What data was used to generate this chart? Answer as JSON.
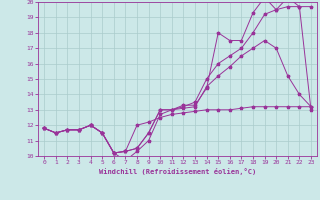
{
  "xlabel": "Windchill (Refroidissement éolien,°C)",
  "xlim": [
    -0.5,
    23.5
  ],
  "ylim": [
    10,
    20
  ],
  "yticks": [
    10,
    11,
    12,
    13,
    14,
    15,
    16,
    17,
    18,
    19,
    20
  ],
  "xticks": [
    0,
    1,
    2,
    3,
    4,
    5,
    6,
    7,
    8,
    9,
    10,
    11,
    12,
    13,
    14,
    15,
    16,
    17,
    18,
    19,
    20,
    21,
    22,
    23
  ],
  "bg_color": "#cce8e8",
  "line_color": "#993399",
  "grid_color": "#aacccc",
  "line1_x": [
    0,
    1,
    2,
    3,
    4,
    5,
    6,
    7,
    8,
    9,
    10,
    11,
    12,
    13,
    14,
    15,
    16,
    17,
    18,
    19,
    20,
    21,
    22,
    23
  ],
  "line1_y": [
    11.8,
    11.5,
    11.7,
    11.7,
    12.0,
    11.5,
    10.2,
    9.7,
    10.3,
    11.0,
    12.7,
    13.0,
    13.3,
    13.3,
    14.4,
    18.0,
    17.5,
    17.5,
    19.3,
    20.3,
    19.5,
    19.7,
    19.7,
    13.0
  ],
  "line2_x": [
    0,
    1,
    2,
    3,
    4,
    5,
    6,
    7,
    8,
    9,
    10,
    11,
    12,
    13,
    14,
    15,
    16,
    17,
    18,
    19,
    20,
    21,
    22,
    23
  ],
  "line2_y": [
    11.8,
    11.5,
    11.7,
    11.7,
    12.0,
    11.5,
    10.2,
    10.3,
    10.5,
    11.5,
    13.0,
    13.0,
    13.2,
    13.5,
    15.0,
    16.0,
    16.5,
    17.0,
    18.0,
    19.2,
    19.5,
    20.3,
    19.7,
    19.7
  ],
  "line3_x": [
    0,
    1,
    2,
    3,
    4,
    5,
    6,
    7,
    8,
    9,
    10,
    11,
    12,
    13,
    14,
    15,
    16,
    17,
    18,
    19,
    20,
    21,
    22,
    23
  ],
  "line3_y": [
    11.8,
    11.5,
    11.7,
    11.7,
    12.0,
    11.5,
    10.2,
    10.3,
    10.5,
    11.5,
    13.0,
    13.0,
    13.1,
    13.2,
    14.5,
    15.2,
    15.8,
    16.5,
    17.0,
    17.5,
    17.0,
    15.2,
    14.0,
    13.2
  ],
  "line4_x": [
    0,
    1,
    2,
    3,
    4,
    5,
    6,
    7,
    8,
    9,
    10,
    11,
    12,
    13,
    14,
    15,
    16,
    17,
    18,
    19,
    20,
    21,
    22,
    23
  ],
  "line4_y": [
    11.8,
    11.5,
    11.7,
    11.7,
    12.0,
    11.5,
    10.2,
    10.3,
    12.0,
    12.2,
    12.5,
    12.7,
    12.8,
    12.9,
    13.0,
    13.0,
    13.0,
    13.1,
    13.2,
    13.2,
    13.2,
    13.2,
    13.2,
    13.2
  ]
}
